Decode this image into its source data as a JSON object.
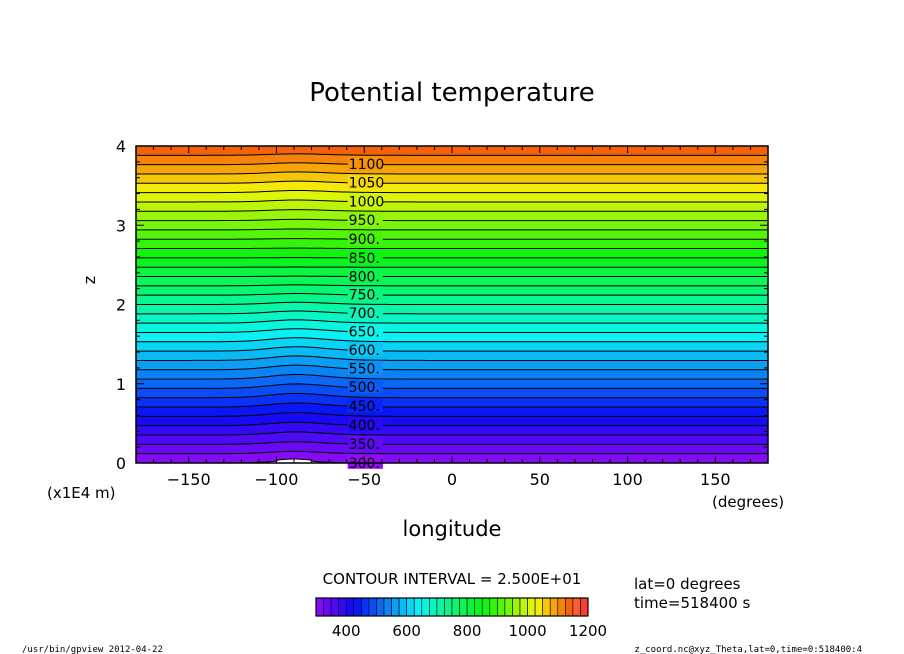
{
  "chart_data": {
    "type": "heatmap",
    "title": "Potential temperature",
    "xlabel": "longitude",
    "xunit": "(degrees)",
    "ylabel": "z",
    "yunit": "(x1E4 m)",
    "xlim": [
      -180,
      180
    ],
    "ylim": [
      0,
      4
    ],
    "x_ticks": [
      -150,
      -100,
      -50,
      0,
      50,
      100,
      150
    ],
    "y_ticks": [
      0,
      1,
      2,
      3,
      4
    ],
    "contour_interval_text": "CONTOUR INTERVAL = 2.500E+01",
    "contour_interval": 25,
    "surface_theta": 300,
    "top_theta": 1150,
    "contour_labels": [
      {
        "text": "300.",
        "value": 300
      },
      {
        "text": "350.",
        "value": 350
      },
      {
        "text": "400.",
        "value": 400
      },
      {
        "text": "450.",
        "value": 450
      },
      {
        "text": "500.",
        "value": 500
      },
      {
        "text": "550.",
        "value": 550
      },
      {
        "text": "600.",
        "value": 600
      },
      {
        "text": "650.",
        "value": 650
      },
      {
        "text": "700.",
        "value": 700
      },
      {
        "text": "750.",
        "value": 750
      },
      {
        "text": "800.",
        "value": 800
      },
      {
        "text": "850.",
        "value": 850
      },
      {
        "text": "900.",
        "value": 900
      },
      {
        "text": "950.",
        "value": 950
      },
      {
        "text": "1000",
        "value": 1000
      },
      {
        "text": "1050",
        "value": 1050
      },
      {
        "text": "1100",
        "value": 1100
      }
    ],
    "mountain": {
      "center_lon": -90,
      "half_width_lon": 20,
      "peak_height": 0.05
    },
    "colorbar": {
      "min": 300,
      "max": 1200,
      "ticks": [
        400,
        600,
        800,
        1000,
        1200
      ]
    },
    "grid": false
  },
  "info": {
    "lat": "lat=0 degrees",
    "time": "time=518400 s"
  },
  "footer": {
    "left": "/usr/bin/gpview  2012-04-22",
    "right": "z_coord.nc@xyz_Theta,lat=0,time=0:518400:4"
  }
}
